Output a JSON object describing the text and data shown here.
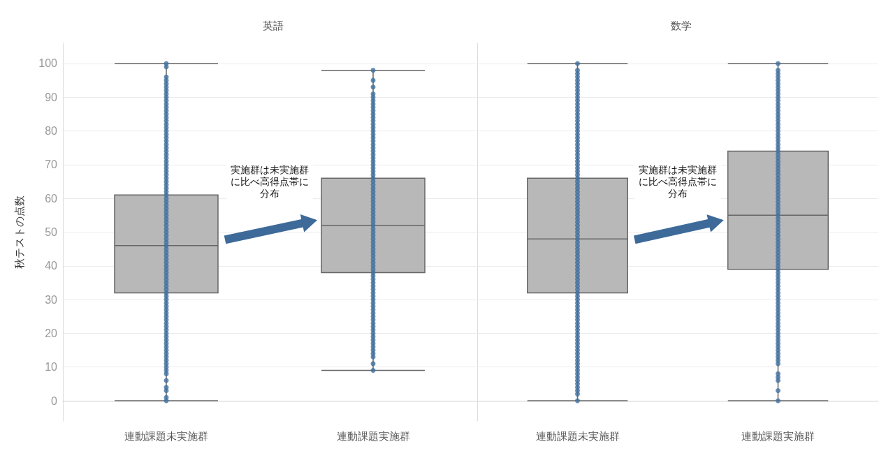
{
  "chart_data": [
    {
      "type": "box",
      "title": "英語",
      "ylabel": "秋テストの点数",
      "categories": [
        "連動課題未実施群",
        "連動課題実施群"
      ],
      "ylim": [
        -6,
        106
      ],
      "yticks": [
        0,
        10,
        20,
        30,
        40,
        50,
        60,
        70,
        80,
        90,
        100
      ],
      "grid": "y",
      "marker": "circle",
      "annotations": [
        "実施群は未実施群に比べ高得点帯に分布"
      ],
      "series": [
        {
          "type": "box",
          "color": "#b8b8b8",
          "boxes": [
            {
              "low": 0,
              "q1": 32,
              "median": 46,
              "q3": 61,
              "high": 100
            },
            {
              "low": 9,
              "q1": 38,
              "median": 52,
              "q3": 66,
              "high": 98
            }
          ]
        },
        {
          "type": "scatter",
          "color": "#41719f",
          "x": [
            "連動課題未実施群",
            "連動課題未実施群",
            "連動課題未実施群",
            "連動課題未実施群",
            "連動課題未実施群",
            "連動課題未実施群",
            "連動課題未実施群",
            "連動課題未実施群",
            "連動課題未実施群",
            "連動課題未実施群",
            "連動課題未実施群",
            "連動課題未実施群",
            "連動課題未実施群",
            "連動課題未実施群",
            "連動課題未実施群",
            "連動課題未実施群",
            "連動課題未実施群",
            "連動課題未実施群",
            "連動課題未実施群",
            "連動課題未実施群",
            "連動課題未実施群",
            "連動課題未実施群",
            "連動課題未実施群",
            "連動課題未実施群",
            "連動課題未実施群",
            "連動課題未実施群",
            "連動課題未実施群",
            "連動課題未実施群",
            "連動課題未実施群",
            "連動課題未実施群",
            "連動課題未実施群",
            "連動課題未実施群",
            "連動課題未実施群",
            "連動課題未実施群",
            "連動課題未実施群",
            "連動課題未実施群",
            "連動課題未実施群",
            "連動課題未実施群",
            "連動課題未実施群",
            "連動課題未実施群",
            "連動課題未実施群",
            "連動課題未実施群",
            "連動課題未実施群",
            "連動課題未実施群",
            "連動課題未実施群",
            "連動課題未実施群",
            "連動課題未実施群",
            "連動課題未実施群",
            "連動課題未実施群",
            "連動課題未実施群",
            "連動課題未実施群",
            "連動課題未実施群",
            "連動課題未実施群",
            "連動課題未実施群",
            "連動課題未実施群",
            "連動課題未実施群",
            "連動課題未実施群",
            "連動課題未実施群",
            "連動課題未実施群",
            "連動課題未実施群",
            "連動課題未実施群",
            "連動課題未実施群",
            "連動課題未実施群",
            "連動課題未実施群",
            "連動課題未実施群",
            "連動課題未実施群",
            "連動課題未実施群",
            "連動課題未実施群",
            "連動課題未実施群",
            "連動課題未実施群",
            "連動課題未実施群",
            "連動課題未実施群",
            "連動課題未実施群",
            "連動課題未実施群",
            "連動課題未実施群",
            "連動課題未実施群",
            "連動課題未実施群",
            "連動課題未実施群",
            "連動課題未実施群",
            "連動課題未実施群",
            "連動課題未実施群",
            "連動課題未実施群",
            "連動課題未実施群",
            "連動課題未実施群",
            "連動課題未実施群",
            "連動課題未実施群",
            "連動課題未実施群",
            "連動課題未実施群",
            "連動課題未実施群",
            "連動課題未実施群",
            "連動課題未実施群",
            "連動課題未実施群",
            "連動課題未実施群",
            "連動課題未実施群",
            "連動課題未実施群",
            "連動課題未実施群"
          ],
          "values": [
            0,
            1,
            3,
            4,
            6,
            8,
            9,
            10,
            11,
            12,
            13,
            14,
            15,
            16,
            17,
            18,
            19,
            20,
            21,
            22,
            23,
            24,
            25,
            26,
            27,
            28,
            29,
            30,
            31,
            32,
            33,
            34,
            35,
            36,
            37,
            38,
            39,
            40,
            41,
            42,
            43,
            44,
            45,
            46,
            47,
            48,
            49,
            50,
            51,
            52,
            53,
            54,
            55,
            56,
            57,
            58,
            59,
            60,
            61,
            62,
            63,
            64,
            65,
            66,
            67,
            68,
            69,
            70,
            71,
            72,
            73,
            74,
            75,
            76,
            77,
            78,
            79,
            80,
            81,
            82,
            83,
            84,
            85,
            86,
            87,
            88,
            89,
            90,
            91,
            92,
            93,
            94,
            95,
            96,
            99,
            100
          ]
        },
        {
          "type": "scatter",
          "color": "#41719f",
          "x": [
            "連動課題実施群",
            "連動課題実施群",
            "連動課題実施群",
            "連動課題実施群",
            "連動課題実施群",
            "連動課題実施群",
            "連動課題実施群",
            "連動課題実施群",
            "連動課題実施群",
            "連動課題実施群",
            "連動課題実施群",
            "連動課題実施群",
            "連動課題実施群",
            "連動課題実施群",
            "連動課題実施群",
            "連動課題実施群",
            "連動課題実施群",
            "連動課題実施群",
            "連動課題実施群",
            "連動課題実施群",
            "連動課題実施群",
            "連動課題実施群",
            "連動課題実施群",
            "連動課題実施群",
            "連動課題実施群",
            "連動課題実施群",
            "連動課題実施群",
            "連動課題実施群",
            "連動課題実施群",
            "連動課題実施群",
            "連動課題実施群",
            "連動課題実施群",
            "連動課題実施群",
            "連動課題実施群",
            "連動課題実施群",
            "連動課題実施群",
            "連動課題実施群",
            "連動課題実施群",
            "連動課題実施群",
            "連動課題実施群",
            "連動課題実施群",
            "連動課題実施群",
            "連動課題実施群",
            "連動課題実施群",
            "連動課題実施群",
            "連動課題実施群",
            "連動課題実施群",
            "連動課題実施群",
            "連動課題実施群",
            "連動課題実施群",
            "連動課題実施群",
            "連動課題実施群",
            "連動課題実施群",
            "連動課題実施群",
            "連動課題実施群",
            "連動課題実施群",
            "連動課題実施群",
            "連動課題実施群",
            "連動課題実施群",
            "連動課題実施群",
            "連動課題実施群",
            "連動課題実施群",
            "連動課題実施群",
            "連動課題実施群",
            "連動課題実施群",
            "連動課題実施群",
            "連動課題実施群",
            "連動課題実施群",
            "連動課題実施群",
            "連動課題実施群",
            "連動課題実施群",
            "連動課題実施群",
            "連動課題実施群",
            "連動課題実施群",
            "連動課題実施群",
            "連動課題実施群",
            "連動課題実施群",
            "連動課題実施群",
            "連動課題実施群",
            "連動課題実施群",
            "連動課題実施群",
            "連動課題実施群",
            "連動課題実施群",
            "連動課題実施群"
          ],
          "values": [
            9,
            11,
            13,
            14,
            15,
            16,
            17,
            18,
            19,
            20,
            21,
            22,
            23,
            24,
            25,
            26,
            27,
            28,
            29,
            30,
            31,
            32,
            33,
            34,
            35,
            36,
            37,
            38,
            39,
            40,
            41,
            42,
            43,
            44,
            45,
            46,
            47,
            48,
            49,
            50,
            51,
            52,
            53,
            54,
            55,
            56,
            57,
            58,
            59,
            60,
            61,
            62,
            63,
            64,
            65,
            66,
            67,
            68,
            69,
            70,
            71,
            72,
            73,
            74,
            75,
            76,
            77,
            78,
            79,
            80,
            81,
            82,
            83,
            84,
            85,
            86,
            87,
            88,
            89,
            90,
            91,
            93,
            95,
            98
          ]
        }
      ]
    },
    {
      "type": "box",
      "title": "数学",
      "categories": [
        "連動課題未実施群",
        "連動課題実施群"
      ],
      "ylim": [
        -6,
        106
      ],
      "yticks": [
        0,
        10,
        20,
        30,
        40,
        50,
        60,
        70,
        80,
        90,
        100
      ],
      "grid": "y",
      "marker": "circle",
      "tick_labels": "x",
      "annotations": [
        "実施群は未実施群に比べ高得点帯に分布"
      ],
      "series": [
        {
          "type": "box",
          "color": "#b8b8b8",
          "boxes": [
            {
              "low": 0,
              "q1": 32,
              "median": 48,
              "q3": 66,
              "high": 100
            },
            {
              "low": 0,
              "q1": 39,
              "median": 55,
              "q3": 74,
              "high": 100
            }
          ]
        },
        {
          "type": "scatter",
          "color": "#41719f",
          "x": [
            "連動課題未実施群",
            "連動課題未実施群",
            "連動課題未実施群",
            "連動課題未実施群",
            "連動課題未実施群",
            "連動課題未実施群",
            "連動課題未実施群",
            "連動課題未実施群",
            "連動課題未実施群",
            "連動課題未実施群",
            "連動課題未実施群",
            "連動課題未実施群",
            "連動課題未実施群",
            "連動課題未実施群",
            "連動課題未実施群",
            "連動課題未実施群",
            "連動課題未実施群",
            "連動課題未実施群",
            "連動課題未実施群",
            "連動課題未実施群",
            "連動課題未実施群",
            "連動課題未実施群",
            "連動課題未実施群",
            "連動課題未実施群",
            "連動課題未実施群",
            "連動課題未実施群",
            "連動課題未実施群",
            "連動課題未実施群",
            "連動課題未実施群",
            "連動課題未実施群",
            "連動課題未実施群",
            "連動課題未実施群",
            "連動課題未実施群",
            "連動課題未実施群",
            "連動課題未実施群",
            "連動課題未実施群",
            "連動課題未実施群",
            "連動課題未実施群",
            "連動課題未実施群",
            "連動課題未実施群",
            "連動課題未実施群",
            "連動課題未実施群",
            "連動課題未実施群",
            "連動課題未実施群",
            "連動課題未実施群",
            "連動課題未実施群",
            "連動課題未実施群",
            "連動課題未実施群",
            "連動課題未実施群",
            "連動課題未実施群",
            "連動課題未実施群",
            "連動課題未実施群",
            "連動課題未実施群",
            "連動課題未実施群",
            "連動課題未実施群",
            "連動課題未実施群",
            "連動課題未実施群",
            "連動課題未実施群",
            "連動課題未実施群",
            "連動課題未実施群",
            "連動課題未実施群",
            "連動課題未実施群",
            "連動課題未実施群",
            "連動課題未実施群",
            "連動課題未実施群",
            "連動課題未実施群",
            "連動課題未実施群",
            "連動課題未実施群",
            "連動課題未実施群",
            "連動課題未実施群",
            "連動課題未実施群",
            "連動課題未実施群",
            "連動課題未実施群",
            "連動課題未実施群",
            "連動課題未実施群",
            "連動課題未実施群",
            "連動課題未実施群",
            "連動課題未実施群",
            "連動課題未実施群",
            "連動課題未実施群",
            "連動課題未実施群",
            "連動課題未実施群",
            "連動課題未実施群",
            "連動課題未実施群",
            "連動課題未実施群",
            "連動課題未実施群",
            "連動課題未実施群",
            "連動課題未実施群",
            "連動課題未実施群",
            "連動課題未実施群",
            "連動課題未実施群",
            "連動課題未実施群",
            "連動課題未実施群",
            "連動課題未実施群",
            "連動課題未実施群",
            "連動課題未実施群",
            "連動課題未実施群",
            "連動課題未実施群",
            "連動課題未実施群"
          ],
          "values": [
            0,
            2,
            3,
            4,
            5,
            6,
            7,
            8,
            9,
            10,
            11,
            12,
            13,
            14,
            15,
            16,
            17,
            18,
            19,
            20,
            21,
            22,
            23,
            24,
            25,
            26,
            27,
            28,
            29,
            30,
            31,
            32,
            33,
            34,
            35,
            36,
            37,
            38,
            39,
            40,
            41,
            42,
            43,
            44,
            45,
            46,
            47,
            48,
            49,
            50,
            51,
            52,
            53,
            54,
            55,
            56,
            57,
            58,
            59,
            60,
            61,
            62,
            63,
            64,
            65,
            66,
            67,
            68,
            69,
            70,
            71,
            72,
            73,
            74,
            75,
            76,
            77,
            78,
            79,
            80,
            81,
            82,
            83,
            84,
            85,
            86,
            87,
            88,
            89,
            90,
            91,
            92,
            93,
            94,
            95,
            96,
            97,
            98,
            100
          ]
        },
        {
          "type": "scatter",
          "color": "#41719f",
          "x": [
            "連動課題実施群",
            "連動課題実施群",
            "連動課題実施群",
            "連動課題実施群",
            "連動課題実施群",
            "連動課題実施群",
            "連動課題実施群",
            "連動課題実施群",
            "連動課題実施群",
            "連動課題実施群",
            "連動課題実施群",
            "連動課題実施群",
            "連動課題実施群",
            "連動課題実施群",
            "連動課題実施群",
            "連動課題実施群",
            "連動課題実施群",
            "連動課題実施群",
            "連動課題実施群",
            "連動課題実施群",
            "連動課題実施群",
            "連動課題実施群",
            "連動課題実施群",
            "連動課題実施群",
            "連動課題実施群",
            "連動課題実施群",
            "連動課題実施群",
            "連動課題実施群",
            "連動課題実施群",
            "連動課題実施群",
            "連動課題実施群",
            "連動課題実施群",
            "連動課題実施群",
            "連動課題実施群",
            "連動課題実施群",
            "連動課題実施群",
            "連動課題実施群",
            "連動課題実施群",
            "連動課題実施群",
            "連動課題実施群",
            "連動課題実施群",
            "連動課題実施群",
            "連動課題実施群",
            "連動課題実施群",
            "連動課題実施群",
            "連動課題実施群",
            "連動課題実施群",
            "連動課題実施群",
            "連動課題実施群",
            "連動課題実施群",
            "連動課題実施群",
            "連動課題実施群",
            "連動課題実施群",
            "連動課題実施群",
            "連動課題実施群",
            "連動課題実施群",
            "連動課題実施群",
            "連動課題実施群",
            "連動課題実施群",
            "連動課題実施群",
            "連動課題実施群",
            "連動課題実施群",
            "連動課題実施群",
            "連動課題実施群",
            "連動課題実施群",
            "連動課題実施群",
            "連動課題実施群",
            "連動課題実施群",
            "連動課題実施群",
            "連動課題実施群",
            "連動課題実施群",
            "連動課題実施群",
            "連動課題実施群",
            "連動課題実施群",
            "連動課題実施群",
            "連動課題実施群",
            "連動課題実施群",
            "連動課題実施群",
            "連動課題実施群",
            "連動課題実施群",
            "連動課題実施群",
            "連動課題実施群",
            "連動課題実施群",
            "連動課題実施群",
            "連動課題実施群",
            "連動課題実施群",
            "連動課題実施群",
            "連動課題実施群",
            "連動課題実施群",
            "連動課題実施群",
            "連動課題実施群",
            "連動課題実施群",
            "連動課題実施群",
            "連動課題実施群"
          ],
          "values": [
            0,
            3,
            6,
            7,
            8,
            11,
            12,
            13,
            14,
            15,
            16,
            17,
            18,
            19,
            20,
            21,
            22,
            23,
            24,
            25,
            26,
            27,
            28,
            29,
            30,
            31,
            32,
            33,
            34,
            35,
            36,
            37,
            38,
            39,
            40,
            41,
            42,
            43,
            44,
            45,
            46,
            47,
            48,
            49,
            50,
            51,
            52,
            53,
            54,
            55,
            56,
            57,
            58,
            59,
            60,
            61,
            62,
            63,
            64,
            65,
            66,
            67,
            68,
            69,
            70,
            71,
            72,
            73,
            74,
            75,
            76,
            77,
            78,
            79,
            80,
            81,
            82,
            83,
            84,
            85,
            86,
            87,
            88,
            89,
            90,
            91,
            92,
            93,
            94,
            95,
            96,
            97,
            98,
            100
          ]
        }
      ]
    }
  ]
}
